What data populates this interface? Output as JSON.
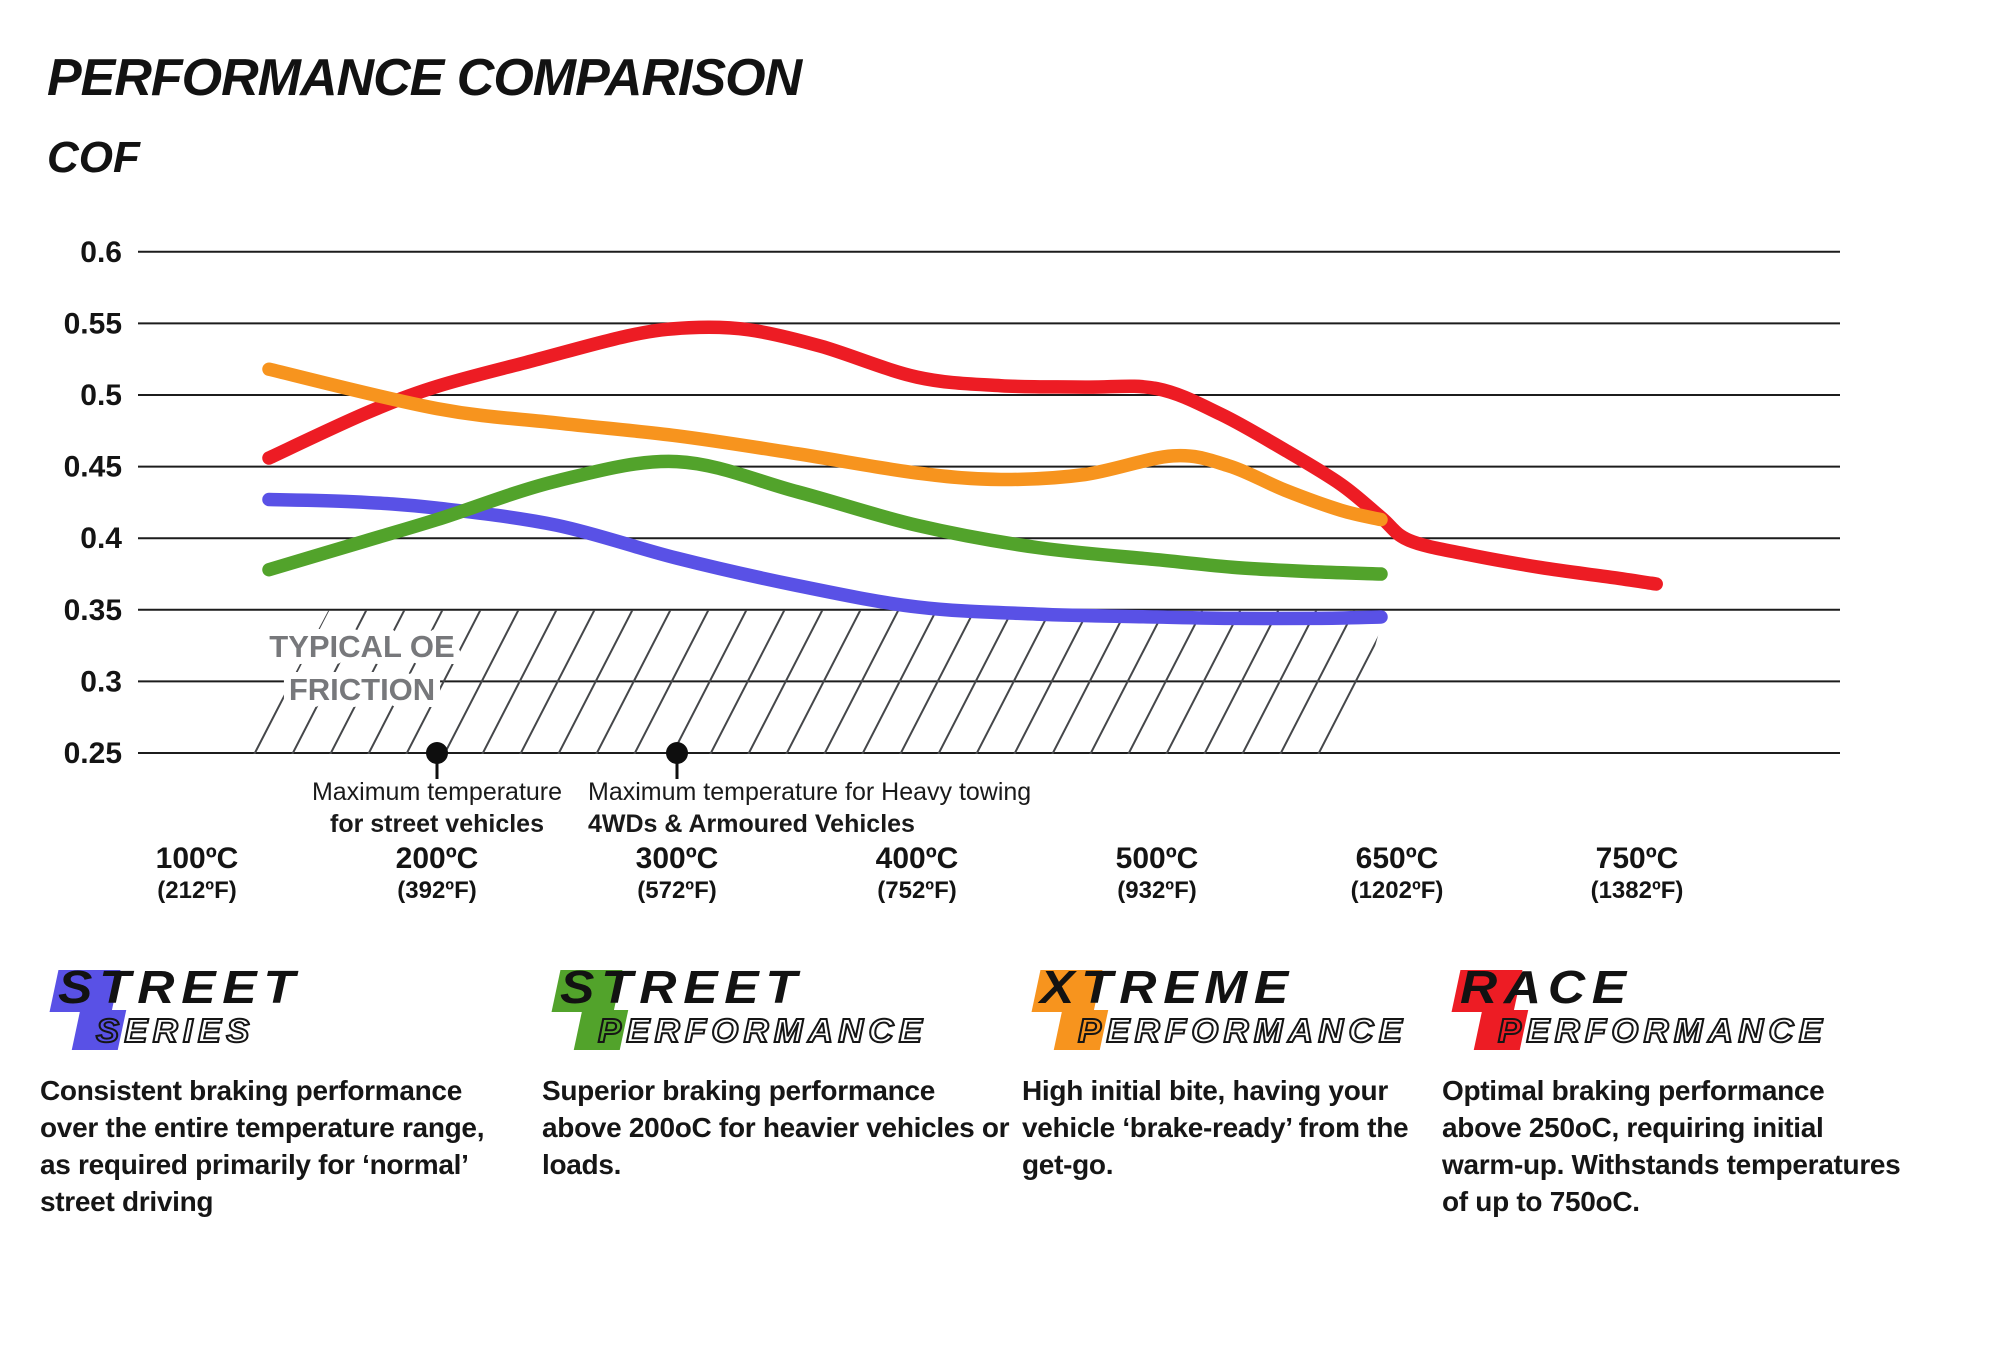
{
  "title": "PERFORMANCE COMPARISON",
  "y_axis_label": "COF",
  "chart_data": {
    "type": "line",
    "title": "PERFORMANCE COMPARISON",
    "xlabel": "",
    "ylabel": "COF",
    "ylim": [
      0.25,
      0.6
    ],
    "grid": "horizontal",
    "legend_position": "bottom",
    "x_axis": {
      "ticks": [
        {
          "temp_c": 100,
          "label_c": "100ºC",
          "label_f": "(212ºF)"
        },
        {
          "temp_c": 200,
          "label_c": "200ºC",
          "label_f": "(392ºF)"
        },
        {
          "temp_c": 300,
          "label_c": "300ºC",
          "label_f": "(572ºF)"
        },
        {
          "temp_c": 400,
          "label_c": "400ºC",
          "label_f": "(752ºF)"
        },
        {
          "temp_c": 500,
          "label_c": "500ºC",
          "label_f": "(932ºF)"
        },
        {
          "temp_c": 650,
          "label_c": "650ºC",
          "label_f": "(1202ºF)"
        },
        {
          "temp_c": 750,
          "label_c": "750ºC",
          "label_f": "(1382ºF)"
        }
      ]
    },
    "y_axis": {
      "ticks": [
        {
          "value": 0.6,
          "label": "0.6"
        },
        {
          "value": 0.55,
          "label": "0.55"
        },
        {
          "value": 0.5,
          "label": "0.5"
        },
        {
          "value": 0.45,
          "label": "0.45"
        },
        {
          "value": 0.4,
          "label": "0.4"
        },
        {
          "value": 0.35,
          "label": "0.35"
        },
        {
          "value": 0.3,
          "label": "0.3"
        },
        {
          "value": 0.25,
          "label": "0.25"
        }
      ]
    },
    "draw_order": [
      3,
      2,
      0,
      1
    ],
    "series": [
      {
        "name": "Street Series",
        "color": "#5951e6",
        "points": [
          [
            130,
            0.427
          ],
          [
            165,
            0.4255
          ],
          [
            200,
            0.421
          ],
          [
            250,
            0.409
          ],
          [
            300,
            0.386
          ],
          [
            350,
            0.367
          ],
          [
            400,
            0.352
          ],
          [
            450,
            0.347
          ],
          [
            500,
            0.345
          ],
          [
            550,
            0.344
          ],
          [
            600,
            0.344
          ],
          [
            640,
            0.345
          ]
        ]
      },
      {
        "name": "Street Performance",
        "color": "#52a32b",
        "points": [
          [
            130,
            0.378
          ],
          [
            170,
            0.398
          ],
          [
            200,
            0.413
          ],
          [
            250,
            0.44
          ],
          [
            300,
            0.4535
          ],
          [
            350,
            0.4325
          ],
          [
            400,
            0.409
          ],
          [
            450,
            0.3935
          ],
          [
            500,
            0.385
          ],
          [
            550,
            0.3795
          ],
          [
            600,
            0.3765
          ],
          [
            640,
            0.375
          ]
        ]
      },
      {
        "name": "Xtreme Performance",
        "color": "#f7941e",
        "points": [
          [
            130,
            0.518
          ],
          [
            200,
            0.4905
          ],
          [
            250,
            0.4805
          ],
          [
            300,
            0.4715
          ],
          [
            350,
            0.459
          ],
          [
            400,
            0.4455
          ],
          [
            435,
            0.441
          ],
          [
            470,
            0.4445
          ],
          [
            510,
            0.4575
          ],
          [
            545,
            0.4505
          ],
          [
            580,
            0.4335
          ],
          [
            615,
            0.4195
          ],
          [
            640,
            0.413
          ]
        ]
      },
      {
        "name": "Race Performance",
        "color": "#ed1c24",
        "points": [
          [
            130,
            0.456
          ],
          [
            170,
            0.487
          ],
          [
            200,
            0.506
          ],
          [
            240,
            0.524
          ],
          [
            280,
            0.5415
          ],
          [
            305,
            0.547
          ],
          [
            330,
            0.5455
          ],
          [
            360,
            0.534
          ],
          [
            400,
            0.5125
          ],
          [
            435,
            0.5065
          ],
          [
            470,
            0.5055
          ],
          [
            500,
            0.5045
          ],
          [
            540,
            0.4865
          ],
          [
            580,
            0.4615
          ],
          [
            615,
            0.4375
          ],
          [
            640,
            0.4145
          ],
          [
            655,
            0.3985
          ],
          [
            680,
            0.3885
          ],
          [
            710,
            0.3795
          ],
          [
            740,
            0.3725
          ],
          [
            758,
            0.368
          ]
        ]
      }
    ],
    "oe_band": {
      "label_lines": [
        "TYPICAL OE",
        "FRICTION"
      ],
      "cof_min": 0.25,
      "cof_max": 0.35,
      "t_start": 123,
      "t_end": 640
    },
    "annotations": [
      {
        "temp_c": 200,
        "line1": "Maximum temperature",
        "line2": "for street vehicles",
        "align": "center"
      },
      {
        "temp_c": 300,
        "line1": "Maximum temperature for Heavy towing",
        "line2": "4WDs & Armoured Vehicles",
        "align": "left"
      }
    ]
  },
  "legend": [
    {
      "word1": "STREET",
      "word2_initial": "S",
      "word2_rest": "ERIES",
      "color": "#5951e6",
      "description": "Consistent braking performance over the entire temperature range, as required primarily for ‘normal’ street driving"
    },
    {
      "word1": "STREET",
      "word2_initial": "P",
      "word2_rest": "ERFORMANCE",
      "color": "#52a32b",
      "description": "Superior braking performance above 200oC for heavier vehicles or loads."
    },
    {
      "word1": "XTREME",
      "word2_initial": "P",
      "word2_rest": "ERFORMANCE",
      "color": "#f7941e",
      "description": "High initial bite, having your vehicle ‘brake-ready’ from the get-go."
    },
    {
      "word1": "RACE",
      "word2_initial": "P",
      "word2_rest": "ERFORMANCE",
      "color": "#ed1c24",
      "description": "Optimal braking performance above 250oC, requiring initial warm-up. Withstands temperatures of up to 750oC."
    }
  ]
}
